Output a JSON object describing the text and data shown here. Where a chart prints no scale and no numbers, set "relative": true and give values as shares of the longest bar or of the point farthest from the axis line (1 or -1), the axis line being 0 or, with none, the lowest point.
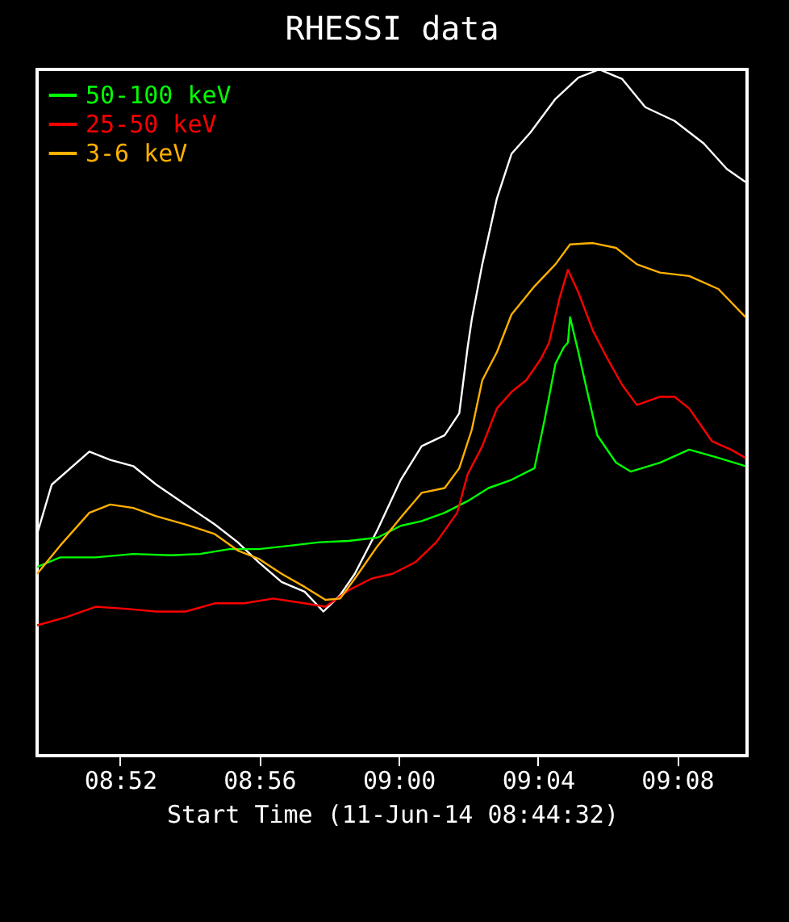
{
  "chart_data": {
    "type": "line",
    "title": "RHESSI data",
    "xlabel": "Start Time (11-Jun-14 08:44:32)",
    "relative": true,
    "legend": "top left",
    "grid": false,
    "line_style": "solid",
    "marker": "none",
    "xlim": [
      8.827,
      9.1667
    ],
    "xticks": [
      {
        "value": 8.8667,
        "label": "08:52"
      },
      {
        "value": 8.9333,
        "label": "08:56"
      },
      {
        "value": 9.0,
        "label": "09:00"
      },
      {
        "value": 9.0667,
        "label": "09:04"
      },
      {
        "value": 9.1333,
        "label": "09:08"
      }
    ],
    "series": [
      {
        "color": "#ffffff",
        "x": [
          8.827,
          8.834,
          8.852,
          8.862,
          8.873,
          8.884,
          8.898,
          8.912,
          8.923,
          8.933,
          8.944,
          8.955,
          8.964,
          8.972,
          8.979,
          8.99,
          9.001,
          9.011,
          9.022,
          9.029,
          9.033,
          9.035,
          9.04,
          9.047,
          9.054,
          9.063,
          9.075,
          9.086,
          9.096,
          9.107,
          9.118,
          9.132,
          9.146,
          9.157,
          9.166
        ],
        "values": [
          0.323,
          0.395,
          0.443,
          0.431,
          0.422,
          0.395,
          0.366,
          0.337,
          0.311,
          0.282,
          0.253,
          0.239,
          0.21,
          0.234,
          0.265,
          0.33,
          0.402,
          0.451,
          0.467,
          0.499,
          0.595,
          0.636,
          0.716,
          0.812,
          0.877,
          0.908,
          0.957,
          0.988,
          1,
          0.986,
          0.945,
          0.925,
          0.892,
          0.855,
          0.836
        ]
      },
      {
        "name": "50-100 keV",
        "color": "#00ff00",
        "x": [
          8.827,
          8.838,
          8.855,
          8.873,
          8.891,
          8.905,
          8.919,
          8.933,
          8.948,
          8.962,
          8.976,
          8.99,
          9.001,
          9.011,
          9.022,
          9.033,
          9.043,
          9.054,
          9.065,
          9.07,
          9.075,
          9.079,
          9.081,
          9.082,
          9.086,
          9.089,
          9.095,
          9.104,
          9.111,
          9.125,
          9.139,
          9.153,
          9.166
        ],
        "values": [
          0.275,
          0.289,
          0.289,
          0.294,
          0.292,
          0.294,
          0.301,
          0.301,
          0.306,
          0.311,
          0.313,
          0.318,
          0.335,
          0.342,
          0.354,
          0.371,
          0.39,
          0.402,
          0.419,
          0.492,
          0.571,
          0.595,
          0.602,
          0.639,
          0.588,
          0.547,
          0.467,
          0.427,
          0.414,
          0.427,
          0.446,
          0.434,
          0.422
        ]
      },
      {
        "name": "25-50 keV",
        "color": "#ff0000",
        "x": [
          8.827,
          8.841,
          8.855,
          8.87,
          8.884,
          8.898,
          8.912,
          8.926,
          8.94,
          8.955,
          8.965,
          8.976,
          8.987,
          8.997,
          9.008,
          9.018,
          9.028,
          9.033,
          9.04,
          9.047,
          9.054,
          9.061,
          9.068,
          9.072,
          9.077,
          9.081,
          9.086,
          9.093,
          9.1,
          9.107,
          9.114,
          9.125,
          9.132,
          9.139,
          9.15,
          9.159,
          9.166
        ],
        "values": [
          0.19,
          0.202,
          0.217,
          0.214,
          0.21,
          0.21,
          0.222,
          0.222,
          0.229,
          0.222,
          0.217,
          0.241,
          0.258,
          0.265,
          0.282,
          0.311,
          0.354,
          0.41,
          0.451,
          0.506,
          0.53,
          0.547,
          0.578,
          0.602,
          0.667,
          0.708,
          0.675,
          0.619,
          0.578,
          0.54,
          0.511,
          0.523,
          0.523,
          0.506,
          0.458,
          0.446,
          0.434
        ]
      },
      {
        "name": "3-6 keV",
        "color": "#ffb000",
        "x": [
          8.827,
          8.838,
          8.852,
          8.862,
          8.873,
          8.884,
          8.898,
          8.912,
          8.923,
          8.933,
          8.944,
          8.955,
          8.965,
          8.972,
          8.979,
          8.99,
          9.001,
          9.011,
          9.022,
          9.029,
          9.035,
          9.04,
          9.047,
          9.054,
          9.065,
          9.075,
          9.082,
          9.093,
          9.104,
          9.114,
          9.125,
          9.139,
          9.153,
          9.166
        ],
        "values": [
          0.265,
          0.306,
          0.354,
          0.366,
          0.361,
          0.349,
          0.337,
          0.323,
          0.299,
          0.287,
          0.265,
          0.246,
          0.227,
          0.229,
          0.258,
          0.306,
          0.347,
          0.383,
          0.39,
          0.419,
          0.475,
          0.547,
          0.588,
          0.643,
          0.684,
          0.716,
          0.745,
          0.747,
          0.74,
          0.716,
          0.704,
          0.699,
          0.68,
          0.639
        ]
      }
    ]
  }
}
